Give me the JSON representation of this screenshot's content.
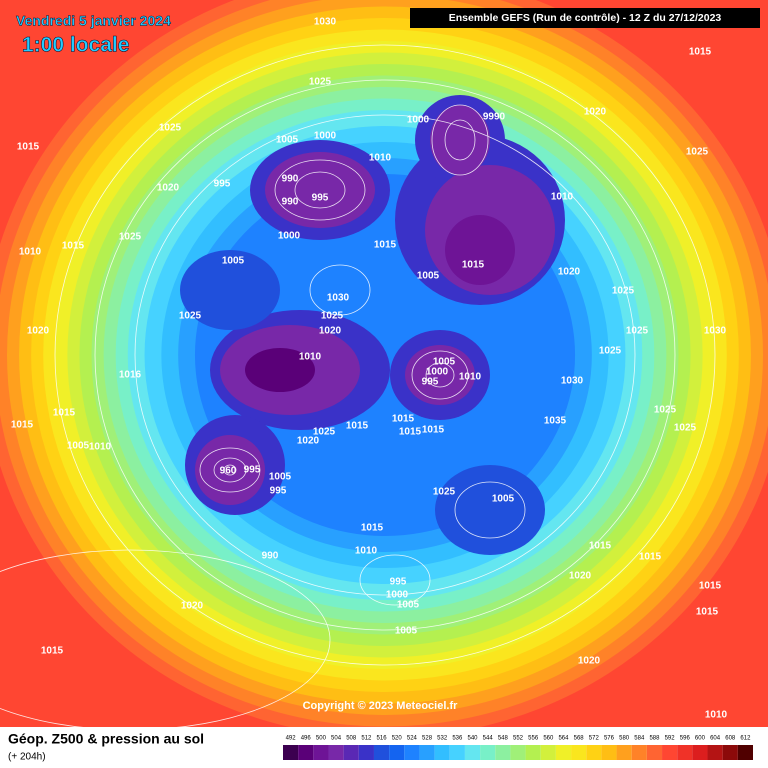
{
  "header": {
    "title": "Vendredi 5 janvier 2024",
    "time": "1:00 locale",
    "model": "Ensemble GEFS  (Run de contrôle)  - 12 Z du 27/12/2023",
    "copyright": "Copyright © 2023 Meteociel.fr"
  },
  "footer": {
    "title": "Géop. Z500 & pression au sol",
    "lead": "(+ 204h)"
  },
  "scale": {
    "values": [
      492,
      496,
      500,
      504,
      508,
      512,
      516,
      520,
      524,
      528,
      532,
      536,
      540,
      544,
      548,
      552,
      556,
      560,
      564,
      568,
      572,
      576,
      580,
      584,
      588,
      592,
      596,
      600,
      604,
      608,
      612
    ],
    "colors": [
      "#3c0050",
      "#5a0078",
      "#6e1496",
      "#7828a8",
      "#5a28b4",
      "#3a32c8",
      "#2050dc",
      "#1464f0",
      "#1e82ff",
      "#28a0ff",
      "#32beff",
      "#46d2ff",
      "#64e6f0",
      "#78f0c8",
      "#8cf0a0",
      "#a0f078",
      "#b4f050",
      "#d2f03c",
      "#f0f028",
      "#fae61e",
      "#ffd214",
      "#ffbe14",
      "#ffa01e",
      "#ff8228",
      "#ff6432",
      "#ff4632",
      "#f03228",
      "#dc1e1e",
      "#b41414",
      "#8c0a0a",
      "#500000"
    ]
  },
  "pressure_labels": [
    1030,
    1015,
    1025,
    1025,
    1015,
    1005,
    1000,
    1010,
    1020,
    1025,
    990,
    995,
    990,
    995,
    1020,
    1010,
    1025,
    1015,
    1010,
    1000,
    1005,
    1015,
    1005,
    1015,
    1020,
    1025,
    1030,
    1025,
    1020,
    1025,
    1025,
    1030,
    1020,
    1010,
    1005,
    1000,
    995,
    1010,
    1025,
    1016,
    1030,
    1015,
    1015,
    1035,
    1025,
    1025,
    1015,
    1015,
    1015,
    1015,
    1025,
    1020,
    1005,
    1010,
    960,
    995,
    1005,
    995,
    1025,
    1005,
    1015,
    1010,
    1015,
    1015,
    990,
    1020,
    995,
    1000,
    1005,
    1015,
    1020,
    1005,
    1015,
    1015,
    1020,
    1010,
    9990,
    1000
  ]
}
